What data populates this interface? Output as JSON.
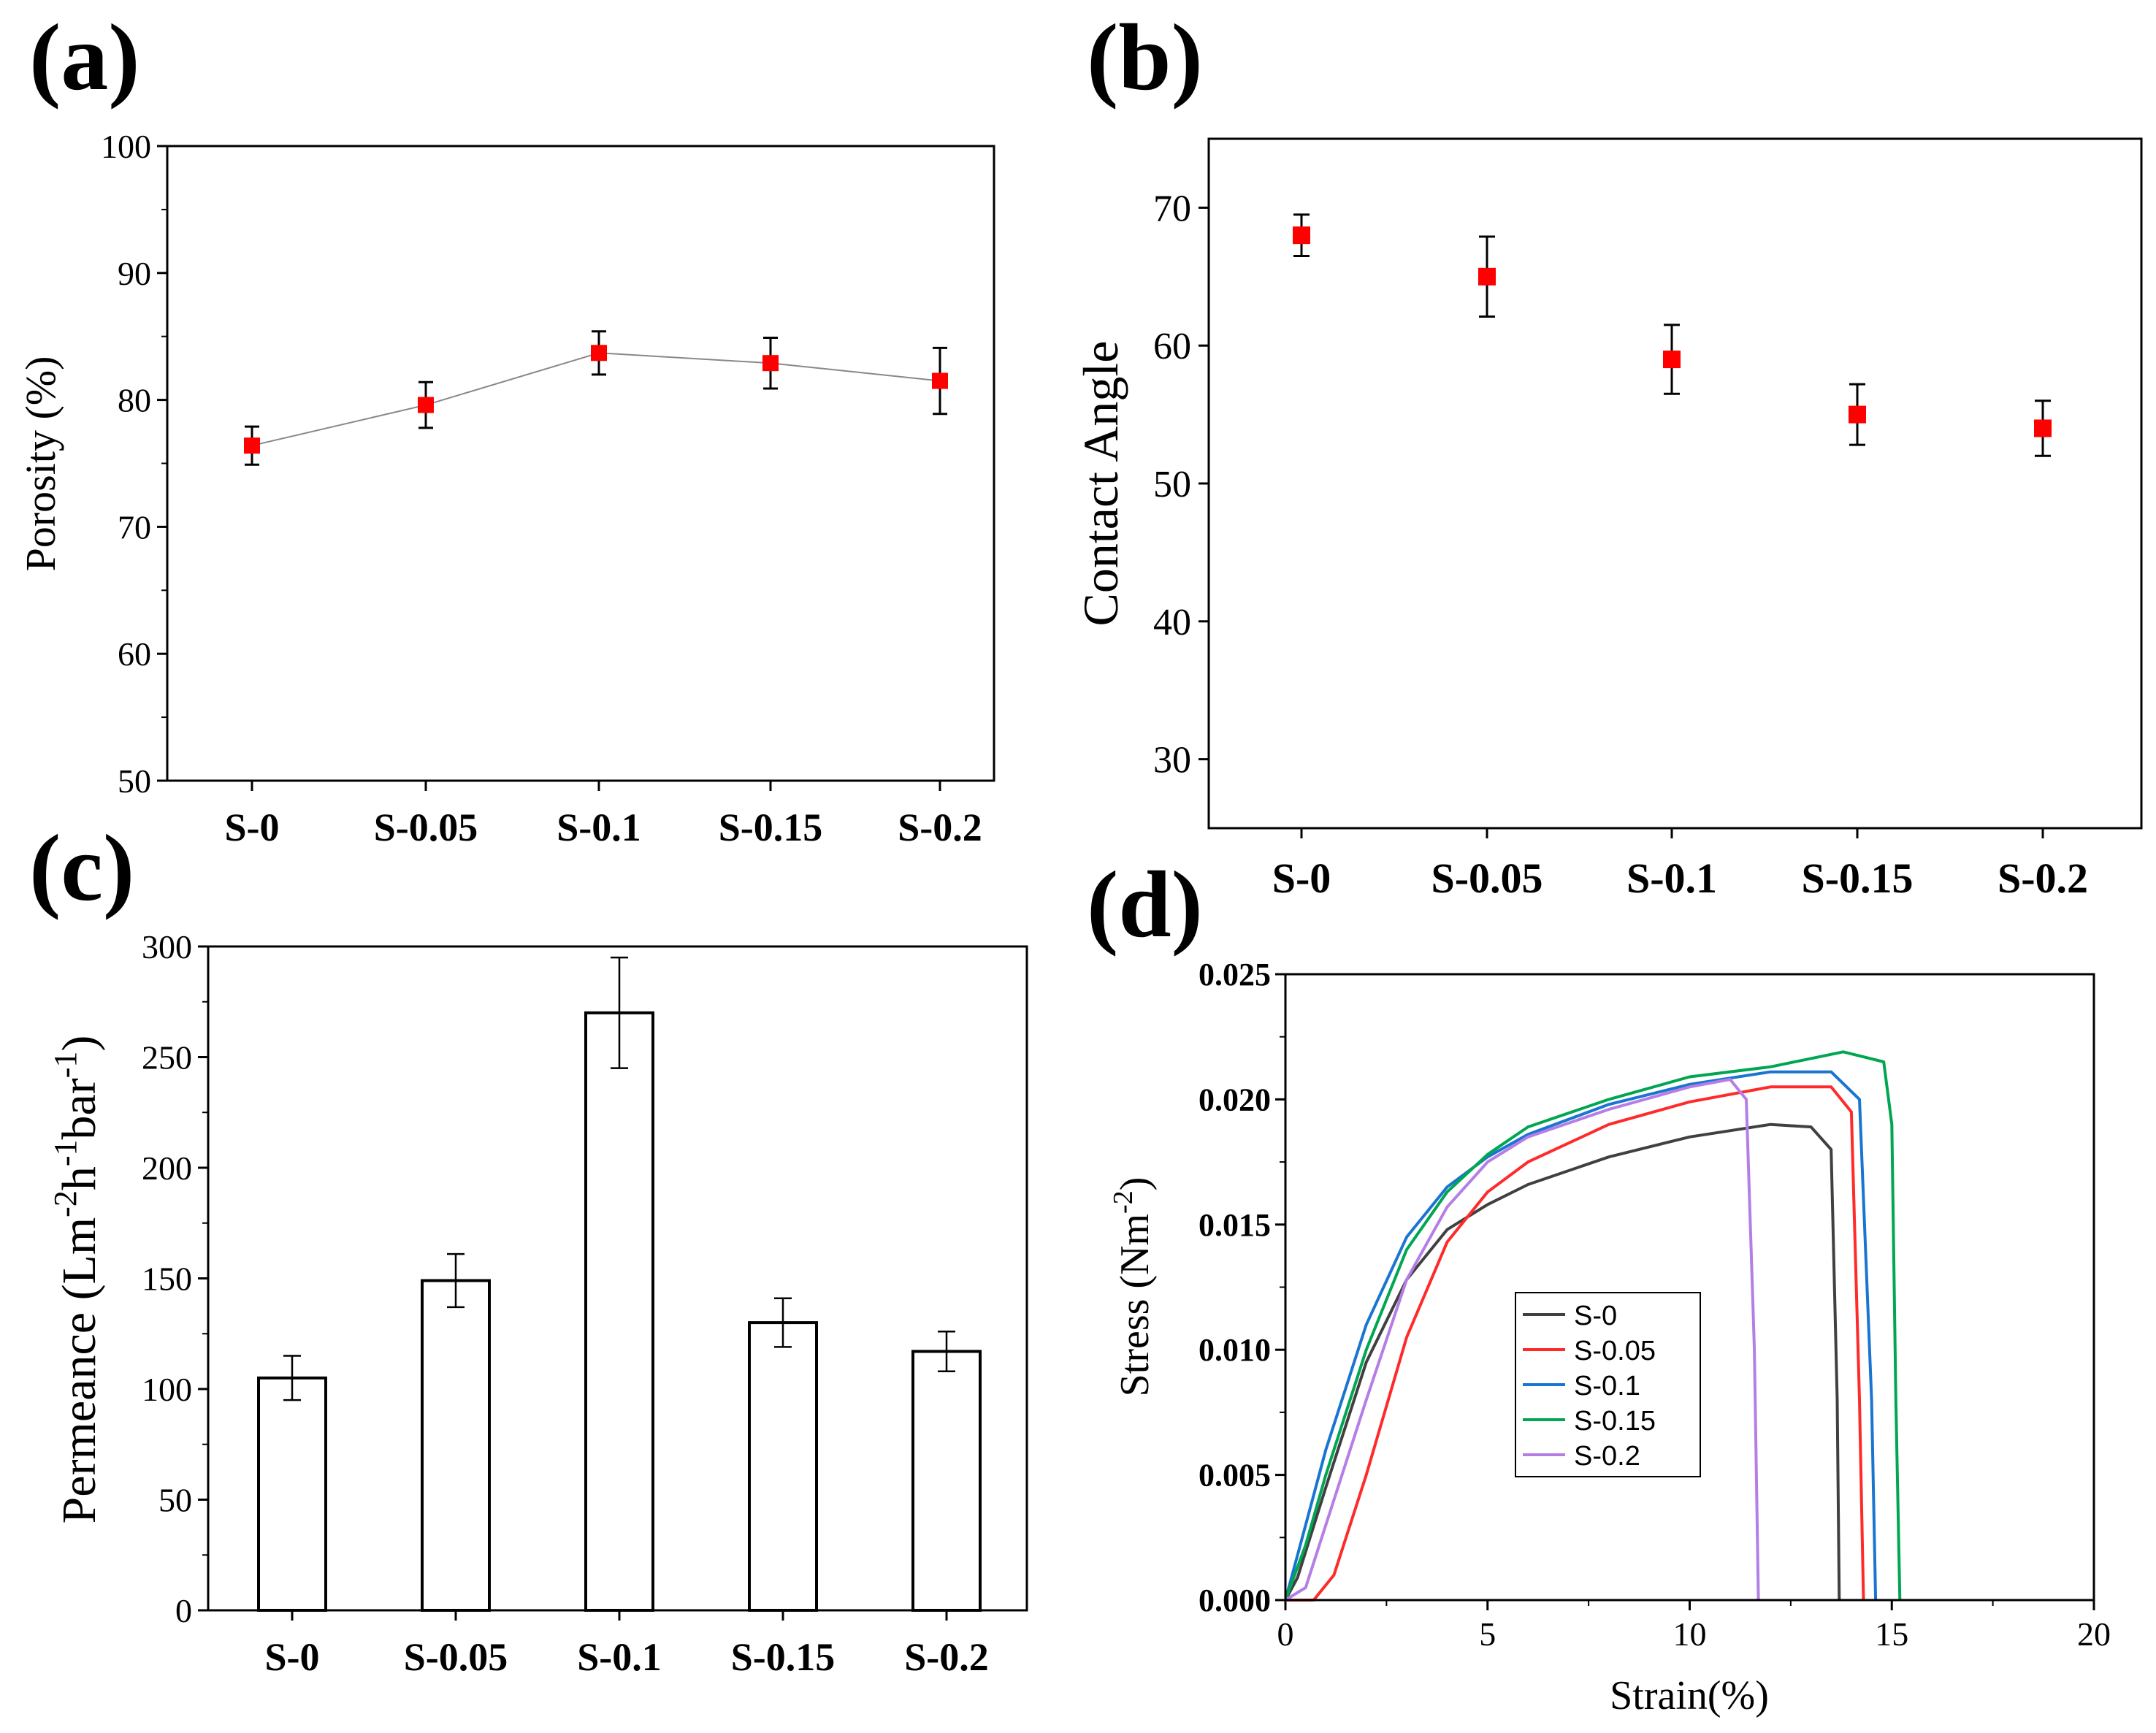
{
  "chart_data": [
    {
      "panel": "(a)",
      "type": "line",
      "categories": [
        "S-0",
        "S-0.05",
        "S-0.1",
        "S-0.15",
        "S-0.2"
      ],
      "series": [
        {
          "name": "Porosity",
          "values": [
            76.4,
            79.6,
            83.7,
            82.9,
            81.5
          ],
          "errors": [
            1.5,
            1.8,
            1.7,
            2.0,
            2.6
          ],
          "color": "#ff0000",
          "line_color": "#888888"
        }
      ],
      "xlabel": "",
      "ylabel": "Porosity (%)",
      "ylim": [
        50,
        100
      ],
      "yticks": [
        50,
        60,
        70,
        80,
        90,
        100
      ]
    },
    {
      "panel": "(b)",
      "type": "scatter",
      "categories": [
        "S-0",
        "S-0.05",
        "S-0.1",
        "S-0.15",
        "S-0.2"
      ],
      "series": [
        {
          "name": "Contact Angle",
          "values": [
            68.0,
            65.0,
            59.0,
            55.0,
            54.0
          ],
          "errors": [
            1.5,
            2.9,
            2.5,
            2.2,
            2.0
          ],
          "color": "#ff0000"
        }
      ],
      "xlabel": "",
      "ylabel": "Contact Angle",
      "ylim": [
        25,
        75
      ],
      "yticks": [
        30,
        40,
        50,
        60,
        70
      ]
    },
    {
      "panel": "(c)",
      "type": "bar",
      "categories": [
        "S-0",
        "S-0.05",
        "S-0.1",
        "S-0.15",
        "S-0.2"
      ],
      "series": [
        {
          "name": "Permeance",
          "values": [
            105,
            149,
            270,
            130,
            117
          ],
          "errors": [
            10,
            12,
            25,
            11,
            9
          ]
        }
      ],
      "xlabel": "",
      "ylabel": "Permeance (Lm-2h-1bar-1)",
      "ylabel_parts": {
        "pre": "Permeance (Lm",
        "e1": "-2",
        "mid1": "h",
        "e2": "-1",
        "mid2": "bar",
        "e3": "-1",
        "post": ")"
      },
      "ylim": [
        0,
        300
      ],
      "yticks": [
        0,
        50,
        100,
        150,
        200,
        250,
        300
      ]
    },
    {
      "panel": "(d)",
      "type": "line",
      "xlabel": "Strain(%)",
      "ylabel": "Stress (Nm-2)",
      "ylabel_parts": {
        "pre": "Stress (Nm",
        "e1": "-2",
        "post": ")"
      },
      "xlim": [
        0,
        20
      ],
      "ylim": [
        0,
        0.025
      ],
      "xticks": [
        "0",
        "5",
        "10",
        "15",
        "20"
      ],
      "yticks": [
        "0.000",
        "0.005",
        "0.010",
        "0.015",
        "0.020",
        "0.025"
      ],
      "legend_position": "center",
      "series": [
        {
          "name": "S-0",
          "color": "#404040",
          "x": [
            0,
            0.3,
            1,
            2,
            3,
            4,
            5,
            6,
            8,
            10,
            12,
            13,
            13.5,
            13.65,
            13.7
          ],
          "y": [
            0,
            0.0009,
            0.0045,
            0.0095,
            0.0128,
            0.0148,
            0.0158,
            0.0166,
            0.0177,
            0.0185,
            0.019,
            0.0189,
            0.018,
            0.008,
            0
          ]
        },
        {
          "name": "S-0.05",
          "color": "#ff2a2a",
          "x": [
            0,
            0.7,
            1.2,
            2,
            3,
            4,
            5,
            6,
            8,
            10,
            12,
            13.5,
            14.0,
            14.2,
            14.3
          ],
          "y": [
            0,
            0,
            0.001,
            0.005,
            0.0105,
            0.0143,
            0.0163,
            0.0175,
            0.019,
            0.0199,
            0.0205,
            0.0205,
            0.0195,
            0.008,
            0
          ]
        },
        {
          "name": "S-0.1",
          "color": "#1a75d1",
          "x": [
            0,
            0.5,
            1,
            2,
            3,
            4,
            5,
            6,
            8,
            10,
            12,
            13.5,
            14.2,
            14.5,
            14.6
          ],
          "y": [
            0,
            0.003,
            0.006,
            0.011,
            0.0145,
            0.0165,
            0.0177,
            0.0186,
            0.0198,
            0.0206,
            0.0211,
            0.0211,
            0.02,
            0.008,
            0
          ]
        },
        {
          "name": "S-0.15",
          "color": "#00a651",
          "x": [
            0,
            0.5,
            1,
            2,
            3,
            4,
            5,
            6,
            8,
            10,
            12,
            13.8,
            14.8,
            15.0,
            15.1,
            15.2
          ],
          "y": [
            0,
            0.0022,
            0.005,
            0.01,
            0.014,
            0.0163,
            0.0178,
            0.0189,
            0.02,
            0.0209,
            0.0213,
            0.0219,
            0.0215,
            0.019,
            0.008,
            0
          ]
        },
        {
          "name": "S-0.2",
          "color": "#b57ee6",
          "x": [
            0,
            0.5,
            1,
            2,
            3,
            4,
            5,
            6,
            8,
            10,
            11,
            11.4,
            11.6,
            11.7
          ],
          "y": [
            0,
            0.0005,
            0.003,
            0.008,
            0.0128,
            0.0157,
            0.0175,
            0.0185,
            0.0196,
            0.0205,
            0.0208,
            0.02,
            0.01,
            0
          ]
        }
      ]
    }
  ]
}
